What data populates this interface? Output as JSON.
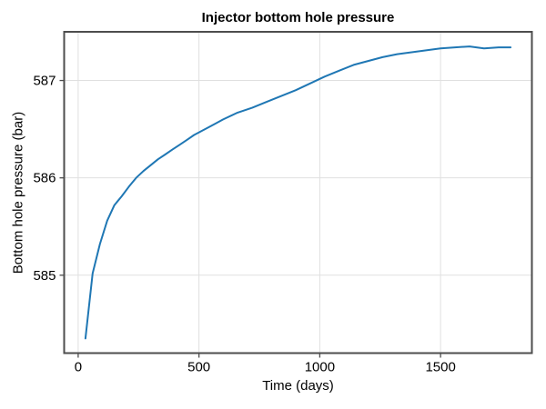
{
  "chart_data": {
    "type": "line",
    "title": "Injector bottom hole pressure",
    "xlabel": "Time (days)",
    "ylabel": "Bottom hole pressure (bar)",
    "xlim": [
      -58,
      1878
    ],
    "ylim": [
      584.2,
      587.5
    ],
    "xticks": [
      0,
      500,
      1000,
      1500
    ],
    "yticks": [
      585,
      586,
      587
    ],
    "grid": true,
    "legend_position": "none",
    "background_color": "#ffffff",
    "grid_color": "#e0e0e0",
    "spine_color": "#4d4d4d",
    "text_color": "#000000",
    "series": [
      {
        "name": "injector-bottom-hole-pressure",
        "color": "#1f77b4",
        "line_width": 2,
        "points": [
          [
            30,
            584.35
          ],
          [
            60,
            585.02
          ],
          [
            90,
            585.32
          ],
          [
            120,
            585.56
          ],
          [
            150,
            585.72
          ],
          [
            180,
            585.81
          ],
          [
            210,
            585.91
          ],
          [
            240,
            586.0
          ],
          [
            270,
            586.07
          ],
          [
            300,
            586.13
          ],
          [
            330,
            586.19
          ],
          [
            360,
            586.24
          ],
          [
            390,
            586.29
          ],
          [
            420,
            586.34
          ],
          [
            450,
            586.39
          ],
          [
            480,
            586.44
          ],
          [
            510,
            586.48
          ],
          [
            540,
            586.52
          ],
          [
            570,
            586.56
          ],
          [
            600,
            586.6
          ],
          [
            660,
            586.67
          ],
          [
            720,
            586.72
          ],
          [
            780,
            586.78
          ],
          [
            840,
            586.84
          ],
          [
            900,
            586.9
          ],
          [
            960,
            586.97
          ],
          [
            1020,
            587.04
          ],
          [
            1080,
            587.1
          ],
          [
            1140,
            587.16
          ],
          [
            1200,
            587.2
          ],
          [
            1260,
            587.24
          ],
          [
            1320,
            587.27
          ],
          [
            1380,
            587.29
          ],
          [
            1440,
            587.31
          ],
          [
            1500,
            587.33
          ],
          [
            1560,
            587.34
          ],
          [
            1620,
            587.35
          ],
          [
            1680,
            587.33
          ],
          [
            1740,
            587.34
          ],
          [
            1790,
            587.34
          ]
        ]
      }
    ]
  }
}
